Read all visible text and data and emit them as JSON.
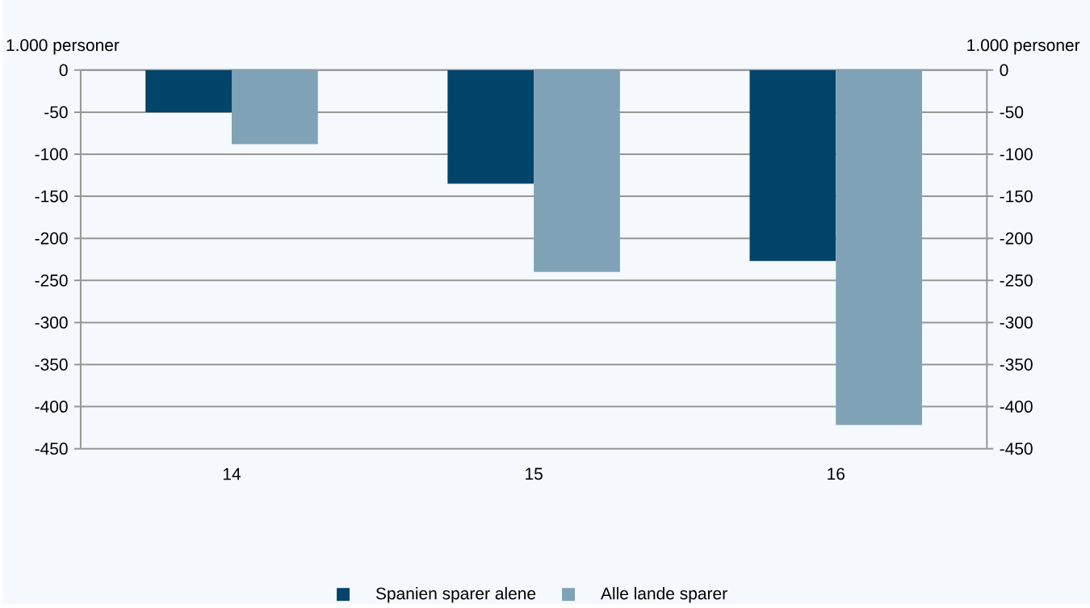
{
  "chart_data": {
    "type": "bar",
    "categories": [
      "14",
      "15",
      "16"
    ],
    "series": [
      {
        "name": "Spanien sparer alene",
        "color": "#02446a",
        "values": [
          -50,
          -135,
          -227
        ]
      },
      {
        "name": "Alle lande sparer",
        "color": "#7fa2b6",
        "values": [
          -88,
          -240,
          -422
        ]
      }
    ],
    "ylabel": "1.000 personer",
    "y2label": "1.000 personer",
    "ylim": [
      -450,
      0
    ],
    "yticks": [
      0,
      -50,
      -100,
      -150,
      -200,
      -250,
      -300,
      -350,
      -400,
      -450
    ],
    "y2lim": [
      -450,
      0
    ],
    "y2ticks": [
      0,
      -50,
      -100,
      -150,
      -200,
      -250,
      -300,
      -350,
      -400,
      -450
    ],
    "grid": "y",
    "legend": "bottom"
  }
}
